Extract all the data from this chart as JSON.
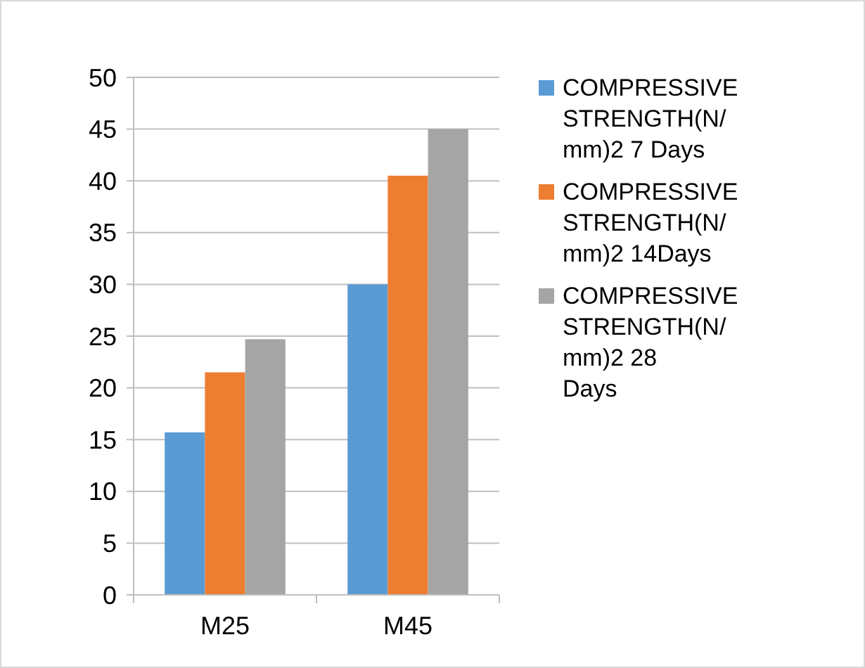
{
  "chart_data": {
    "type": "bar",
    "categories": [
      "M25",
      "M45"
    ],
    "series": [
      {
        "name": "COMPRESSIVE STRENGTH(N/mm)2 7 Days",
        "color": "#5b9bd5",
        "values": [
          15.7,
          30
        ]
      },
      {
        "name": "COMPRESSIVE STRENGTH(N/mm)2 14Days",
        "color": "#ed7d31",
        "values": [
          21.5,
          40.5
        ]
      },
      {
        "name": "COMPRESSIVE STRENGTH(N/mm)2 28 Days",
        "color": "#a5a5a5",
        "values": [
          24.7,
          45
        ]
      }
    ],
    "ylim": [
      0,
      50
    ],
    "yticks": [
      0,
      5,
      10,
      15,
      20,
      25,
      30,
      35,
      40,
      45,
      50
    ],
    "grid": "y",
    "legend": "right"
  }
}
